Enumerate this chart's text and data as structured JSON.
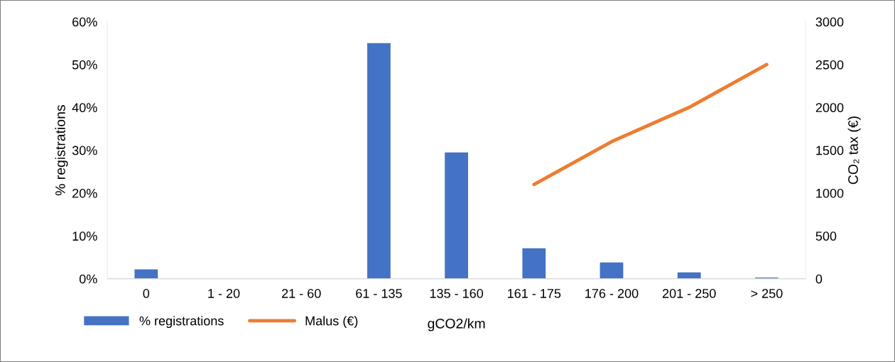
{
  "chart_data": {
    "type": "bar",
    "xlabel": "gCO2/km",
    "ylabel": "% registrations",
    "y2label": "CO₂ tax (€)",
    "categories": [
      "0",
      "1 - 20",
      "21 - 60",
      "61 - 135",
      "135 - 160",
      "161 - 175",
      "176 - 200",
      "201 - 250",
      "> 250"
    ],
    "series": [
      {
        "name": "% registrations",
        "color": "#4472c4",
        "values": [
          2.2,
          0,
          0,
          55,
          29.5,
          7.1,
          3.8,
          1.5,
          0.3
        ]
      },
      {
        "name": "Malus (€)",
        "type": "line",
        "axis": "y2",
        "color": "#ed7d31",
        "values": [
          null,
          null,
          null,
          null,
          null,
          1100,
          1600,
          2000,
          2500
        ]
      }
    ],
    "ylim": [
      0,
      60
    ],
    "yticks": [
      {
        "value": 0,
        "label": "0%"
      },
      {
        "value": 10,
        "label": "10%"
      },
      {
        "value": 20,
        "label": "20%"
      },
      {
        "value": 30,
        "label": "30%"
      },
      {
        "value": 40,
        "label": "40%"
      },
      {
        "value": 50,
        "label": "50%"
      },
      {
        "value": 60,
        "label": "60%"
      }
    ],
    "y2lim": [
      0,
      3000
    ],
    "y2ticks": [
      0,
      500,
      1000,
      1500,
      2000,
      2500,
      3000
    ],
    "grid": false,
    "legend": "bottom left"
  }
}
